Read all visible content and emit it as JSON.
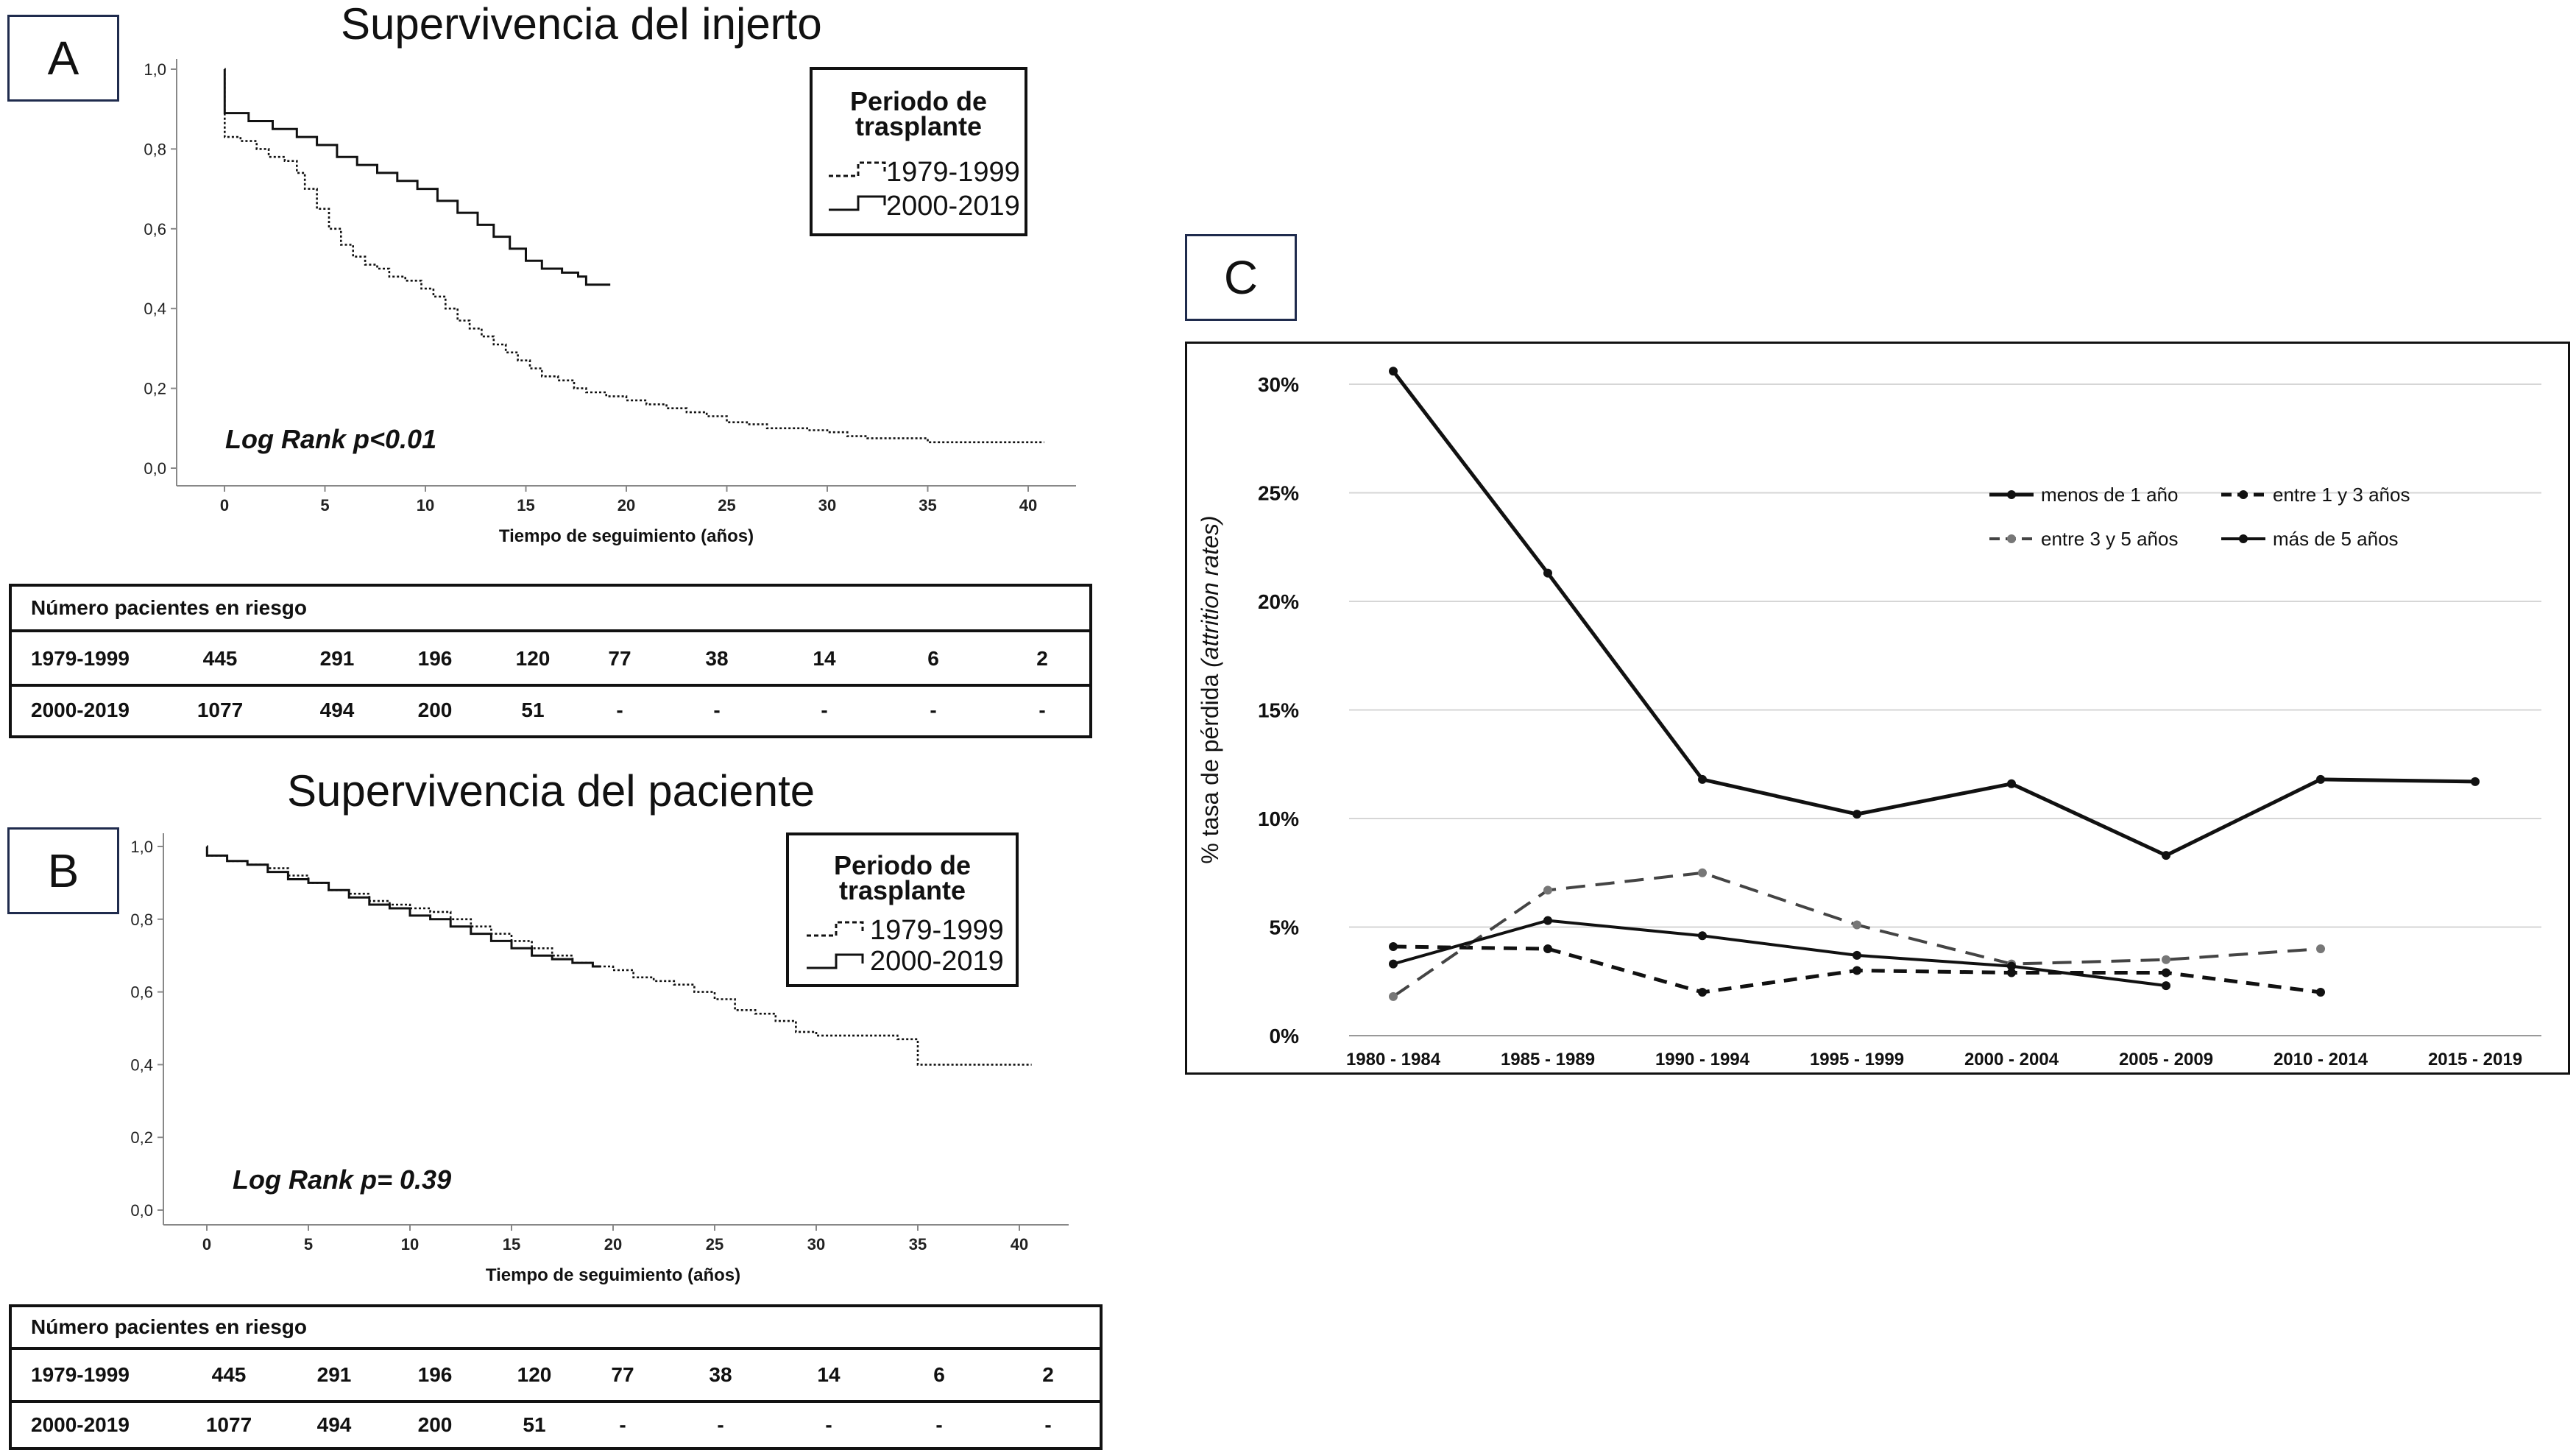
{
  "panels": {
    "a": {
      "label": "A",
      "title": "Supervivencia del injerto",
      "legend_title_line1": "Periodo de",
      "legend_title_line2": "trasplante",
      "annotation": "Log Rank p<0.01",
      "risk_table": {
        "header": "Número pacientes en riesgo",
        "rows": [
          {
            "name": "1979-1999",
            "values": [
              "445",
              "291",
              "196",
              "120",
              "77",
              "38",
              "14",
              "6",
              "2"
            ]
          },
          {
            "name": "2000-2019",
            "values": [
              "1077",
              "494",
              "200",
              "51",
              "-",
              "-",
              "-",
              "-",
              "-"
            ]
          }
        ]
      }
    },
    "b": {
      "label": "B",
      "title": "Supervivencia del paciente",
      "legend_title_line1": "Periodo de",
      "legend_title_line2": "trasplante",
      "annotation": "Log Rank p= 0.39",
      "risk_table": {
        "header": "Número pacientes en riesgo",
        "rows": [
          {
            "name": "1979-1999",
            "values": [
              "445",
              "291",
              "196",
              "120",
              "77",
              "38",
              "14",
              "6",
              "2"
            ]
          },
          {
            "name": "2000-2019",
            "values": [
              "1077",
              "494",
              "200",
              "51",
              "-",
              "-",
              "-",
              "-",
              "-"
            ]
          }
        ]
      }
    },
    "c": {
      "label": "C"
    }
  },
  "chart_data": [
    {
      "id": "graft",
      "type": "line",
      "step": true,
      "xlabel": "Tiempo de seguimiento (años)",
      "xlim": [
        0,
        42
      ],
      "ylim": [
        0,
        1
      ],
      "xticks": [
        "0",
        "5",
        "10",
        "15",
        "20",
        "25",
        "30",
        "35",
        "40"
      ],
      "yticks": [
        "0,0",
        "0,2",
        "0,4",
        "0,6",
        "0,8",
        "1,0"
      ],
      "series": [
        {
          "name": "1979-1999",
          "style": "dotted",
          "x": [
            0,
            0.01,
            0.8,
            1.6,
            2.2,
            3,
            3.6,
            4,
            4.6,
            5.2,
            5.8,
            6.4,
            7,
            7.6,
            8.2,
            9,
            9.8,
            10.4,
            11,
            11.6,
            12.2,
            12.8,
            13.4,
            14,
            14.6,
            15.2,
            15.8,
            16.6,
            17.4,
            18,
            19,
            20,
            21,
            22,
            23,
            24,
            25,
            26,
            27,
            28,
            29,
            30,
            31,
            32,
            33,
            34,
            35,
            40.8
          ],
          "y": [
            1,
            0.83,
            0.82,
            0.8,
            0.78,
            0.77,
            0.74,
            0.7,
            0.65,
            0.6,
            0.56,
            0.53,
            0.51,
            0.5,
            0.48,
            0.47,
            0.45,
            0.43,
            0.4,
            0.37,
            0.35,
            0.33,
            0.31,
            0.29,
            0.27,
            0.25,
            0.23,
            0.22,
            0.2,
            0.19,
            0.18,
            0.17,
            0.16,
            0.15,
            0.14,
            0.13,
            0.115,
            0.11,
            0.1,
            0.1,
            0.095,
            0.09,
            0.08,
            0.075,
            0.075,
            0.075,
            0.065,
            0.065
          ]
        },
        {
          "name": "2000-2019",
          "style": "solid",
          "x": [
            0,
            0.01,
            1.2,
            2.4,
            3.6,
            4.6,
            5.6,
            6.6,
            7.6,
            8.6,
            9.6,
            10.6,
            11.6,
            12.6,
            13.4,
            14.2,
            15,
            15.8,
            16.8,
            17.6,
            18,
            19.2
          ],
          "y": [
            1,
            0.89,
            0.87,
            0.85,
            0.83,
            0.81,
            0.78,
            0.76,
            0.74,
            0.72,
            0.7,
            0.67,
            0.64,
            0.61,
            0.58,
            0.55,
            0.52,
            0.5,
            0.49,
            0.48,
            0.46,
            0.46
          ]
        }
      ]
    },
    {
      "id": "patient",
      "type": "line",
      "step": true,
      "xlabel": "Tiempo de seguimiento (años)",
      "xlim": [
        0,
        42
      ],
      "ylim": [
        0,
        1
      ],
      "xticks": [
        "0",
        "5",
        "10",
        "15",
        "20",
        "25",
        "30",
        "35",
        "40"
      ],
      "yticks": [
        "0,0",
        "0,2",
        "0,4",
        "0,6",
        "0,8",
        "1,0"
      ],
      "series": [
        {
          "name": "1979-1999",
          "style": "dotted",
          "x": [
            0,
            0.01,
            1,
            2,
            3,
            4,
            5,
            6,
            7,
            8,
            9,
            10,
            11,
            12,
            13,
            14,
            15,
            16,
            17,
            18,
            19,
            20,
            21,
            22,
            23,
            24,
            25,
            26,
            27,
            28,
            29,
            30,
            31,
            32,
            33,
            34,
            35,
            40.6
          ],
          "y": [
            1,
            0.975,
            0.96,
            0.95,
            0.94,
            0.92,
            0.9,
            0.88,
            0.87,
            0.85,
            0.84,
            0.83,
            0.82,
            0.8,
            0.78,
            0.76,
            0.74,
            0.72,
            0.7,
            0.68,
            0.67,
            0.66,
            0.64,
            0.63,
            0.62,
            0.6,
            0.58,
            0.55,
            0.54,
            0.52,
            0.49,
            0.48,
            0.48,
            0.48,
            0.48,
            0.47,
            0.4,
            0.4
          ]
        },
        {
          "name": "2000-2019",
          "style": "solid",
          "x": [
            0,
            0.01,
            1,
            2,
            3,
            4,
            5,
            6,
            7,
            8,
            9,
            10,
            11,
            12,
            13,
            14,
            15,
            16,
            17,
            18,
            19,
            19.4
          ],
          "y": [
            1,
            0.975,
            0.96,
            0.95,
            0.93,
            0.91,
            0.9,
            0.88,
            0.86,
            0.84,
            0.83,
            0.81,
            0.8,
            0.78,
            0.76,
            0.74,
            0.72,
            0.7,
            0.69,
            0.68,
            0.67,
            0.67
          ]
        }
      ]
    },
    {
      "id": "attrition",
      "type": "line",
      "ylabel": "% tasa de pérdida",
      "ylabel_italic": "(attrition rates)",
      "ylim": [
        0,
        31
      ],
      "yticks": [
        {
          "value": 0,
          "label": "0%"
        },
        {
          "value": 5,
          "label": "5%"
        },
        {
          "value": 10,
          "label": "10%"
        },
        {
          "value": 15,
          "label": "15%"
        },
        {
          "value": 20,
          "label": "20%"
        },
        {
          "value": 25,
          "label": "25%"
        },
        {
          "value": 30,
          "label": "30%"
        }
      ],
      "grid": true,
      "legend_position": "top-right",
      "categories": [
        "1980 - 1984",
        "1985 - 1989",
        "1990 - 1994",
        "1995 - 1999",
        "2000 - 2004",
        "2005 - 2009",
        "2010 - 2014",
        "2015 - 2019"
      ],
      "series": [
        {
          "name": "menos de 1 año",
          "style": "solid-thick",
          "color": "#111111",
          "values": [
            30.6,
            21.3,
            11.8,
            10.2,
            11.6,
            8.3,
            11.8,
            11.7
          ]
        },
        {
          "name": "entre 1 y 3 años",
          "style": "dash-thick",
          "color": "#111111",
          "values": [
            4.1,
            4.0,
            2.0,
            3.0,
            2.9,
            2.9,
            2.0,
            null
          ]
        },
        {
          "name": "entre 3 y 5 años",
          "style": "dash",
          "color": "#444444",
          "values": [
            1.8,
            6.7,
            7.5,
            5.1,
            3.3,
            3.5,
            4.0,
            null
          ]
        },
        {
          "name": "más de 5 años",
          "style": "solid",
          "color": "#111111",
          "values": [
            3.3,
            5.3,
            4.6,
            3.7,
            3.2,
            2.3,
            null,
            null
          ]
        }
      ]
    }
  ]
}
